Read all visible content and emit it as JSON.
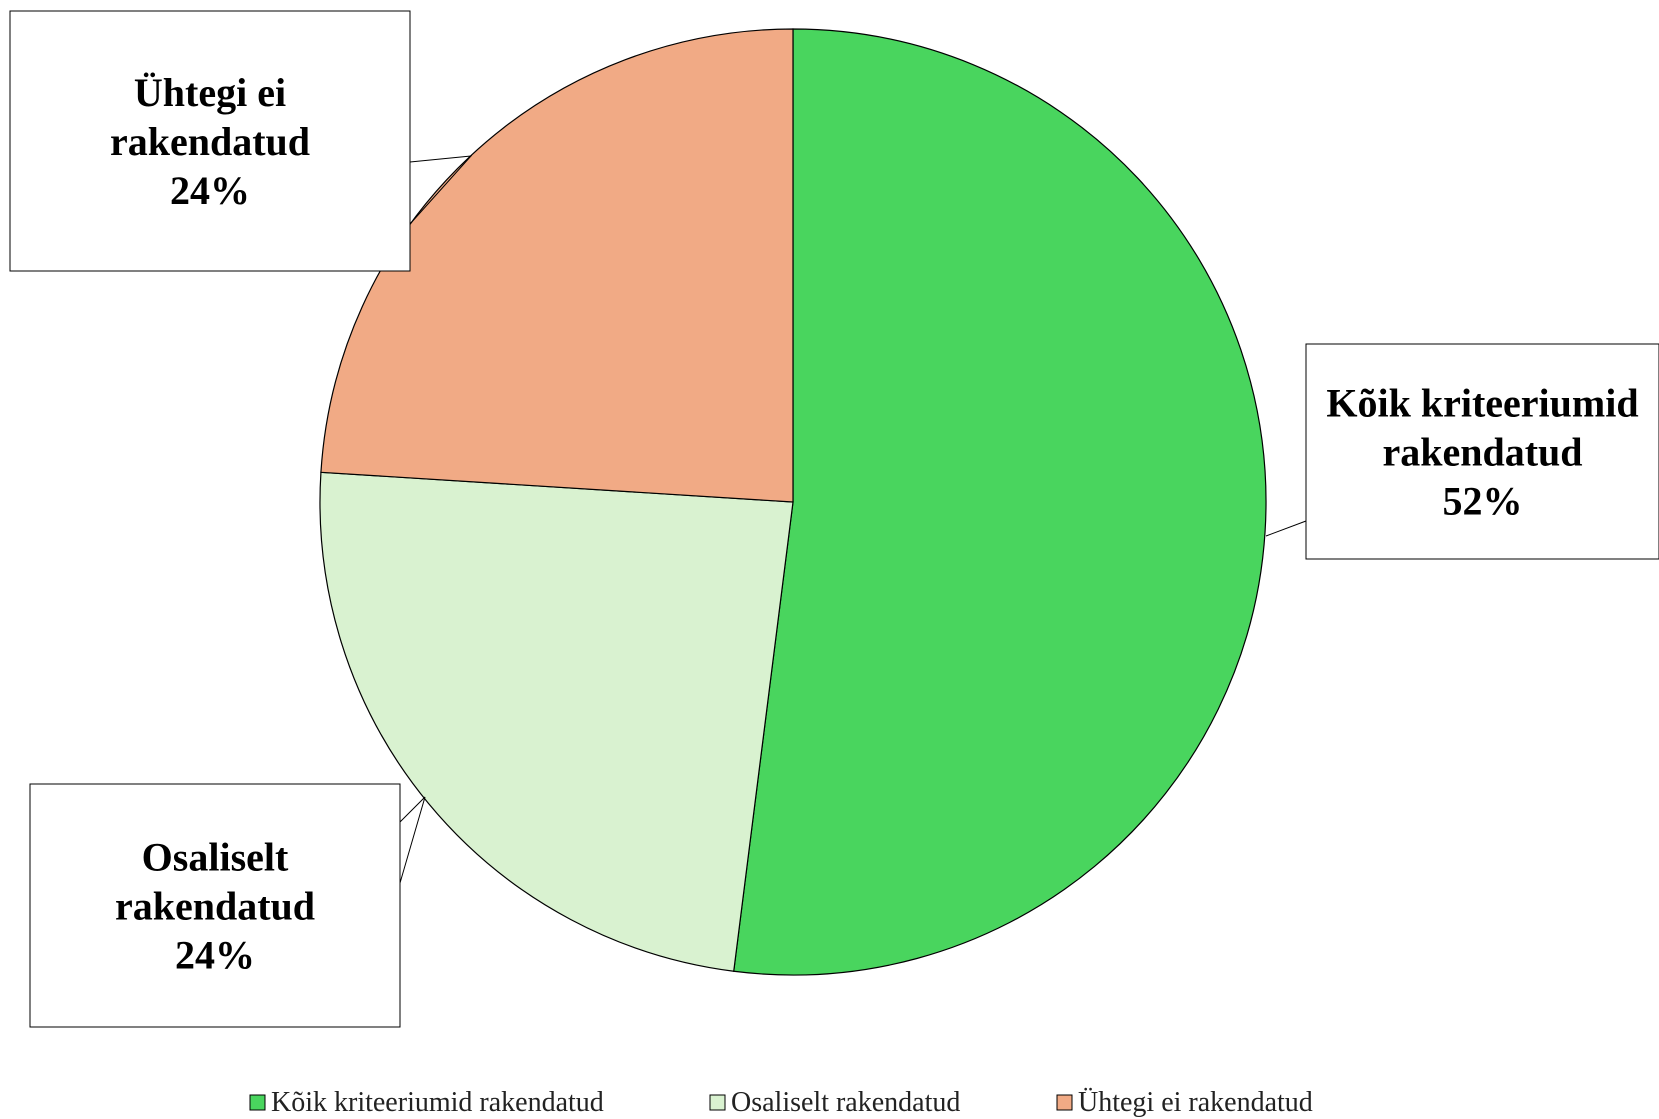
{
  "chart_data": {
    "type": "pie",
    "title": "",
    "slices": [
      {
        "label": "Kõik kriteeriumid rakendatud",
        "callout_lines": [
          "Kõik kriteeriumid",
          "rakendatud"
        ],
        "percent_label": "52%",
        "value": 52,
        "color": "#49d55e"
      },
      {
        "label": "Osaliselt rakendatud",
        "callout_lines": [
          "Osaliselt",
          "rakendatud"
        ],
        "percent_label": "24%",
        "value": 24,
        "color": "#d9f2d0"
      },
      {
        "label": "Ühtegi ei rakendatud",
        "callout_lines": [
          "Ühtegi ei",
          "rakendatud"
        ],
        "percent_label": "24%",
        "value": 24,
        "color": "#f1aa85"
      }
    ],
    "legend_position": "bottom"
  }
}
